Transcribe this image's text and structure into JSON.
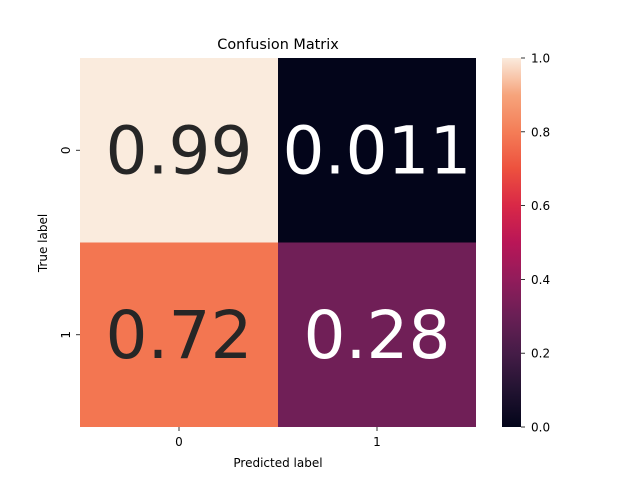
{
  "chart_data": {
    "type": "heatmap",
    "title": "Confusion Matrix",
    "xlabel": "Predicted label",
    "ylabel": "True label",
    "x_categories": [
      "0",
      "1"
    ],
    "y_categories": [
      "0",
      "1"
    ],
    "values": [
      [
        0.99,
        0.011
      ],
      [
        0.72,
        0.28
      ]
    ],
    "cell_labels": [
      [
        "0.99",
        "0.011"
      ],
      [
        "0.72",
        "0.28"
      ]
    ],
    "colorbar": {
      "range": [
        0.0,
        1.0
      ],
      "ticks": [
        "0.0",
        "0.2",
        "0.4",
        "0.6",
        "0.8",
        "1.0"
      ],
      "colormap": "rocket"
    },
    "colors": {
      "cell_00": "#faebdd",
      "cell_01": "#03051a",
      "cell_10": "#f37651",
      "cell_11": "#701f57",
      "annotation_dark": "#262626",
      "annotation_light": "#ffffff"
    }
  }
}
